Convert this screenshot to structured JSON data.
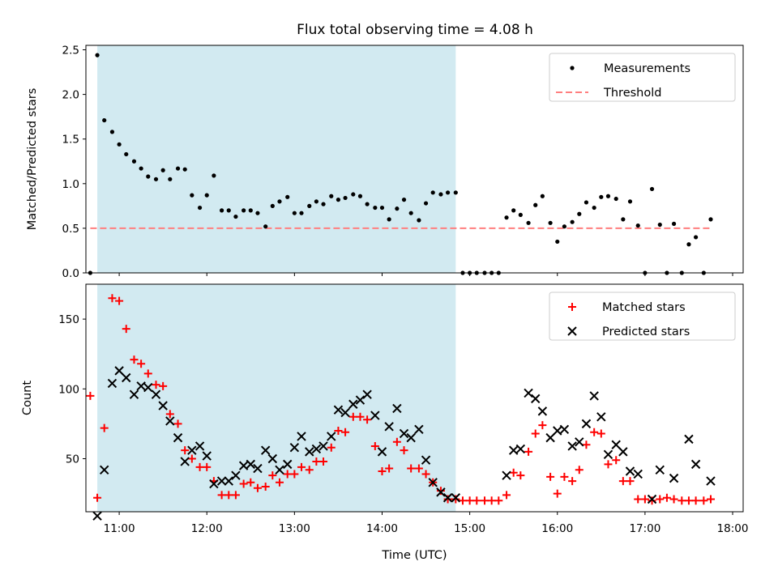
{
  "title": "Flux total observing time = 4.08 h",
  "colors": {
    "shade": "#add8e6",
    "threshold": "#ff7f7f",
    "matched": "#ff0000",
    "predicted": "#000000",
    "measurement": "#000000"
  },
  "chart_data": [
    {
      "type": "scatter",
      "ylabel": "Matched/Predicted stars",
      "xlabel": "",
      "xlim": [
        10.62,
        18.12
      ],
      "ylim": [
        0,
        2.55
      ],
      "yticks": [
        "0.0",
        "0.5",
        "1.0",
        "1.5",
        "2.0",
        "2.5"
      ],
      "legend_position": "top-right",
      "shaded_interval": [
        10.75,
        14.84
      ],
      "threshold": {
        "name": "Threshold",
        "value": 0.5,
        "x_range": [
          10.67,
          17.75
        ]
      },
      "series": [
        {
          "name": "Measurements",
          "x": [
            10.67,
            10.75,
            10.83,
            10.92,
            11.0,
            11.08,
            11.17,
            11.25,
            11.33,
            11.42,
            11.5,
            11.58,
            11.67,
            11.75,
            11.83,
            11.92,
            12.0,
            12.08,
            12.17,
            12.25,
            12.33,
            12.42,
            12.5,
            12.58,
            12.67,
            12.75,
            12.83,
            12.92,
            13.0,
            13.08,
            13.17,
            13.25,
            13.33,
            13.42,
            13.5,
            13.58,
            13.67,
            13.75,
            13.83,
            13.92,
            14.0,
            14.08,
            14.17,
            14.25,
            14.33,
            14.42,
            14.5,
            14.58,
            14.67,
            14.75,
            14.84,
            14.92,
            15.0,
            15.08,
            15.17,
            15.25,
            15.33,
            15.42,
            15.5,
            15.58,
            15.67,
            15.75,
            15.83,
            15.92,
            16.0,
            16.08,
            16.17,
            16.25,
            16.33,
            16.42,
            16.5,
            16.58,
            16.67,
            16.75,
            16.83,
            16.92,
            17.0,
            17.08,
            17.17,
            17.25,
            17.33,
            17.42,
            17.5,
            17.58,
            17.67,
            17.75
          ],
          "y": [
            0.0,
            2.44,
            1.71,
            1.58,
            1.44,
            1.33,
            1.25,
            1.17,
            1.08,
            1.05,
            1.15,
            1.05,
            1.17,
            1.16,
            0.87,
            0.73,
            0.87,
            1.09,
            0.7,
            0.7,
            0.63,
            0.7,
            0.7,
            0.67,
            0.52,
            0.75,
            0.8,
            0.85,
            0.67,
            0.67,
            0.75,
            0.8,
            0.77,
            0.86,
            0.82,
            0.84,
            0.88,
            0.86,
            0.77,
            0.73,
            0.73,
            0.6,
            0.72,
            0.82,
            0.67,
            0.59,
            0.78,
            0.9,
            0.88,
            0.9,
            0.9,
            0.0,
            0.0,
            0.0,
            0.0,
            0.0,
            0.0,
            0.62,
            0.7,
            0.65,
            0.56,
            0.76,
            0.86,
            0.56,
            0.35,
            0.52,
            0.57,
            0.66,
            0.79,
            0.73,
            0.85,
            0.86,
            0.83,
            0.6,
            0.8,
            0.53,
            0.0,
            0.94,
            0.54,
            0.0,
            0.55,
            0.0,
            0.32,
            0.4,
            0.0,
            0.6
          ]
        }
      ]
    },
    {
      "type": "scatter",
      "ylabel": "Count",
      "xlabel": "Time (UTC)",
      "xlim": [
        10.62,
        18.12
      ],
      "ylim": [
        12,
        175
      ],
      "yticks": [
        "50",
        "100",
        "150"
      ],
      "xticks": [
        "11:00",
        "12:00",
        "13:00",
        "14:00",
        "15:00",
        "16:00",
        "17:00",
        "18:00"
      ],
      "legend_position": "top-right",
      "shaded_interval": [
        10.75,
        14.84
      ],
      "series": [
        {
          "name": "Matched stars",
          "x": [
            10.67,
            10.75,
            10.83,
            10.92,
            11.0,
            11.08,
            11.17,
            11.25,
            11.33,
            11.42,
            11.5,
            11.58,
            11.67,
            11.75,
            11.83,
            11.92,
            12.0,
            12.08,
            12.17,
            12.25,
            12.33,
            12.42,
            12.5,
            12.58,
            12.67,
            12.75,
            12.83,
            12.92,
            13.0,
            13.08,
            13.17,
            13.25,
            13.33,
            13.42,
            13.5,
            13.58,
            13.67,
            13.75,
            13.83,
            13.92,
            14.0,
            14.08,
            14.17,
            14.25,
            14.33,
            14.42,
            14.5,
            14.58,
            14.67,
            14.75,
            14.84,
            14.92,
            15.0,
            15.08,
            15.17,
            15.25,
            15.33,
            15.42,
            15.5,
            15.58,
            15.67,
            15.75,
            15.83,
            15.92,
            16.0,
            16.08,
            16.17,
            16.25,
            16.33,
            16.42,
            16.5,
            16.58,
            16.67,
            16.75,
            16.83,
            16.92,
            17.0,
            17.08,
            17.17,
            17.25,
            17.33,
            17.42,
            17.5,
            17.58,
            17.67,
            17.75
          ],
          "y": [
            95,
            22,
            72,
            165,
            163,
            143,
            121,
            118,
            111,
            103,
            102,
            82,
            75,
            56,
            50,
            44,
            44,
            34,
            24,
            24,
            24,
            32,
            33,
            29,
            30,
            38,
            33,
            39,
            39,
            44,
            42,
            48,
            48,
            58,
            70,
            69,
            80,
            80,
            78,
            59,
            41,
            43,
            62,
            56,
            43,
            43,
            39,
            33,
            27,
            21,
            21,
            20,
            20,
            20,
            20,
            20,
            20,
            24,
            40,
            38,
            55,
            68,
            74,
            37,
            25,
            37,
            34,
            42,
            60,
            69,
            68,
            46,
            49,
            34,
            34,
            21,
            21,
            20,
            21,
            22,
            21,
            20,
            20,
            20,
            20,
            21
          ]
        },
        {
          "name": "Predicted stars",
          "x": [
            10.75,
            10.83,
            10.92,
            11.0,
            11.08,
            11.17,
            11.25,
            11.33,
            11.42,
            11.5,
            11.58,
            11.67,
            11.75,
            11.83,
            11.92,
            12.0,
            12.08,
            12.17,
            12.25,
            12.33,
            12.42,
            12.5,
            12.58,
            12.67,
            12.75,
            12.83,
            12.92,
            13.0,
            13.08,
            13.17,
            13.25,
            13.33,
            13.42,
            13.5,
            13.58,
            13.67,
            13.75,
            13.83,
            13.92,
            14.0,
            14.08,
            14.17,
            14.25,
            14.33,
            14.42,
            14.5,
            14.58,
            14.67,
            14.75,
            14.84,
            15.42,
            15.5,
            15.58,
            15.67,
            15.75,
            15.83,
            15.92,
            16.0,
            16.08,
            16.17,
            16.25,
            16.33,
            16.42,
            16.5,
            16.58,
            16.67,
            16.75,
            16.83,
            16.92,
            17.08,
            17.17,
            17.33,
            17.5,
            17.58,
            17.75
          ],
          "y": [
            9,
            42,
            104,
            113,
            108,
            96,
            102,
            101,
            96,
            88,
            77,
            65,
            48,
            56,
            59,
            52,
            32,
            34,
            34,
            38,
            45,
            46,
            43,
            56,
            50,
            42,
            46,
            58,
            66,
            55,
            57,
            59,
            66,
            85,
            83,
            89,
            92,
            96,
            81,
            55,
            73,
            86,
            68,
            65,
            71,
            49,
            33,
            26,
            22,
            22,
            38,
            56,
            57,
            97,
            93,
            84,
            65,
            70,
            71,
            59,
            62,
            75,
            95,
            80,
            53,
            60,
            55,
            41,
            39,
            21,
            42,
            36,
            64,
            46,
            34
          ]
        }
      ]
    }
  ]
}
